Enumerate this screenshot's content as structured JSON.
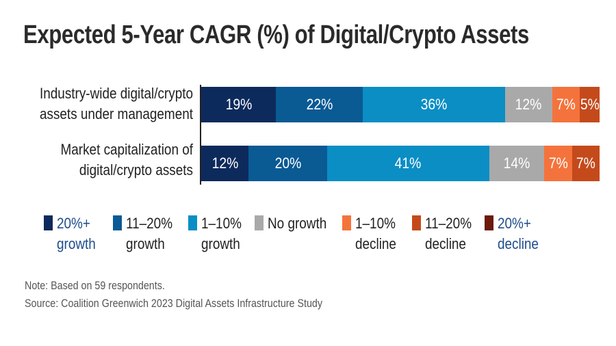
{
  "chart_data": {
    "type": "stacked-bar-horizontal",
    "title": "Expected 5-Year CAGR (%) of Digital/Crypto Assets",
    "categories": [
      {
        "line1": "Industry-wide digital/crypto",
        "line2": "assets under management"
      },
      {
        "line1": "Market capitalization of",
        "line2": "digital/crypto assets"
      }
    ],
    "series": [
      {
        "name_line1": "20%+",
        "name_line2": "growth",
        "color": "#0d2a5c",
        "label_color": "#1f4d8c",
        "values": [
          19,
          12
        ]
      },
      {
        "name_line1": "11–20%",
        "name_line2": "growth",
        "color": "#0a5a94",
        "label_color": "#222222",
        "values": [
          22,
          20
        ]
      },
      {
        "name_line1": "1–10%",
        "name_line2": "growth",
        "color": "#0a8ec4",
        "label_color": "#222222",
        "values": [
          36,
          41
        ]
      },
      {
        "name_line1": "No growth",
        "name_line2": "",
        "color": "#a9a9a9",
        "label_color": "#222222",
        "values": [
          12,
          14
        ]
      },
      {
        "name_line1": "1–10%",
        "name_line2": "decline",
        "color": "#f4733c",
        "label_color": "#222222",
        "values": [
          7,
          7
        ]
      },
      {
        "name_line1": "11–20%",
        "name_line2": "decline",
        "color": "#c44a1c",
        "label_color": "#222222",
        "values": [
          5,
          7
        ]
      },
      {
        "name_line1": "20%+",
        "name_line2": "decline",
        "color": "#6b1a0c",
        "label_color": "#1f4d8c",
        "values": [
          0,
          0
        ]
      }
    ],
    "value_suffix": "%",
    "notes": [
      "Note: Based on 59 respondents.",
      "Source: Coalition Greenwich 2023 Digital Assets Infrastructure Study"
    ]
  }
}
